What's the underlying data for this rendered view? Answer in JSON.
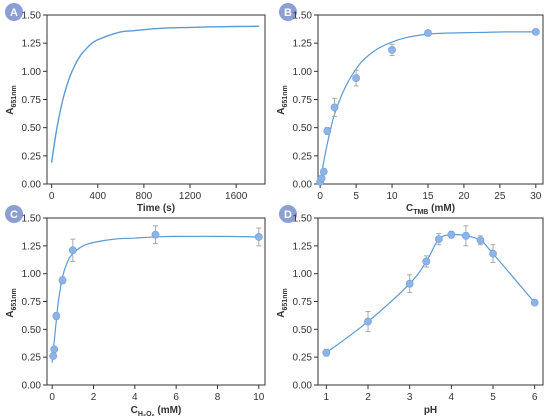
{
  "colors": {
    "series": "#5b9bd5",
    "marker": "#8db4e8",
    "errorbar": "#a9a9a9",
    "axis": "#333333",
    "badge": "#8c9fd4"
  },
  "chart_data": [
    {
      "panel": "A",
      "type": "line",
      "title": "",
      "xlabel": "Time (s)",
      "ylabel": {
        "base": "A",
        "sub": "651nm"
      },
      "xlim": [
        -40,
        1850
      ],
      "ylim": [
        0,
        1.5
      ],
      "xticks": [
        0,
        400,
        800,
        1200,
        1600
      ],
      "xtick_labels": [
        "0",
        "400",
        "800",
        "1200",
        "1600"
      ],
      "yticks": [
        0,
        0.25,
        0.5,
        0.75,
        1.0,
        1.25,
        1.5
      ],
      "ytick_labels": [
        "0.00",
        "0.25",
        "0.50",
        "0.75",
        "1.00",
        "1.25",
        "1.50"
      ],
      "grid": false,
      "series": [
        {
          "x": [
            0,
            20,
            50,
            100,
            150,
            200,
            250,
            300,
            350,
            400,
            500,
            600,
            700,
            800,
            1000,
            1200,
            1400,
            1600,
            1800
          ],
          "y": [
            0.19,
            0.33,
            0.52,
            0.76,
            0.93,
            1.05,
            1.14,
            1.2,
            1.25,
            1.28,
            1.32,
            1.35,
            1.36,
            1.37,
            1.385,
            1.39,
            1.395,
            1.398,
            1.4
          ]
        }
      ]
    },
    {
      "panel": "B",
      "type": "scatter",
      "title": "",
      "xlabel": {
        "base": "C",
        "sub": "TMB",
        "suffix": " (mM)"
      },
      "ylabel": {
        "base": "A",
        "sub": "651nm"
      },
      "xlim": [
        -0.3,
        31
      ],
      "ylim": [
        0,
        1.5
      ],
      "xticks": [
        0,
        5,
        10,
        15,
        20,
        25,
        30
      ],
      "xtick_labels": [
        "0",
        "5",
        "10",
        "15",
        "20",
        "25",
        "30"
      ],
      "yticks": [
        0,
        0.25,
        0.5,
        0.75,
        1.0,
        1.25,
        1.5
      ],
      "ytick_labels": [
        "0.00",
        "0.25",
        "0.50",
        "0.75",
        "1.00",
        "1.25",
        "1.50"
      ],
      "grid": false,
      "points": {
        "x": [
          0,
          0.2,
          0.5,
          1,
          2,
          5,
          10,
          15,
          30
        ],
        "y": [
          0.02,
          0.05,
          0.11,
          0.47,
          0.68,
          0.94,
          1.19,
          1.34,
          1.35
        ],
        "err": [
          0,
          0,
          0.02,
          0.03,
          0.08,
          0.07,
          0.05,
          0.02,
          0.02
        ]
      },
      "fit": {
        "x": [
          0,
          0.5,
          1,
          1.5,
          2,
          3,
          4,
          5,
          6,
          8,
          10,
          12,
          15,
          18,
          22,
          26,
          30
        ],
        "y": [
          0.0,
          0.2,
          0.36,
          0.5,
          0.62,
          0.79,
          0.92,
          1.02,
          1.1,
          1.2,
          1.26,
          1.3,
          1.33,
          1.34,
          1.345,
          1.35,
          1.35
        ]
      }
    },
    {
      "panel": "C",
      "type": "scatter",
      "title": "",
      "xlabel": {
        "base": "C",
        "sub": "H₂O₂",
        "suffix": " (mM)"
      },
      "ylabel": {
        "base": "A",
        "sub": "651nm"
      },
      "xlim": [
        -0.25,
        10.3
      ],
      "ylim": [
        0,
        1.5
      ],
      "xticks": [
        0,
        2,
        4,
        6,
        8,
        10
      ],
      "xtick_labels": [
        "0",
        "2",
        "4",
        "6",
        "8",
        "10"
      ],
      "yticks": [
        0,
        0.25,
        0.5,
        0.75,
        1.0,
        1.25,
        1.5
      ],
      "ytick_labels": [
        "0.00",
        "0.25",
        "0.50",
        "0.75",
        "1.00",
        "1.25",
        "1.50"
      ],
      "grid": false,
      "points": {
        "x": [
          0.05,
          0.1,
          0.2,
          0.5,
          1.0,
          5.0,
          10.0
        ],
        "y": [
          0.26,
          0.32,
          0.62,
          0.94,
          1.21,
          1.35,
          1.33
        ],
        "err": [
          0.02,
          0.02,
          0.03,
          0.03,
          0.1,
          0.08,
          0.08
        ]
      },
      "fit": {
        "x": [
          0.0,
          0.1,
          0.2,
          0.3,
          0.5,
          0.75,
          1.0,
          1.5,
          2.0,
          3.0,
          4.0,
          5.0,
          6.0,
          8.0,
          10.0
        ],
        "y": [
          0.2,
          0.39,
          0.58,
          0.75,
          0.97,
          1.11,
          1.18,
          1.25,
          1.28,
          1.31,
          1.32,
          1.33,
          1.335,
          1.335,
          1.33
        ]
      }
    },
    {
      "panel": "D",
      "type": "line",
      "title": "",
      "xlabel": "pH",
      "ylabel": {
        "base": "A",
        "sub": "651nm"
      },
      "xlim": [
        0.8,
        6.2
      ],
      "ylim": [
        0,
        1.5
      ],
      "xticks": [
        1,
        2,
        3,
        4,
        5,
        6
      ],
      "xtick_labels": [
        "1",
        "2",
        "3",
        "4",
        "5",
        "6"
      ],
      "yticks": [
        0,
        0.25,
        0.5,
        0.75,
        1.0,
        1.25,
        1.5
      ],
      "ytick_labels": [
        "0.00",
        "0.25",
        "0.50",
        "0.75",
        "1.00",
        "1.25",
        "1.50"
      ],
      "grid": false,
      "points": {
        "x": [
          1,
          2,
          3,
          3.4,
          3.7,
          4,
          4.35,
          4.7,
          5,
          6
        ],
        "y": [
          0.29,
          0.57,
          0.91,
          1.11,
          1.31,
          1.35,
          1.34,
          1.3,
          1.18,
          0.74
        ],
        "err": [
          0.03,
          0.09,
          0.08,
          0.05,
          0.05,
          0.03,
          0.09,
          0.04,
          0.08,
          0.02
        ]
      }
    }
  ]
}
